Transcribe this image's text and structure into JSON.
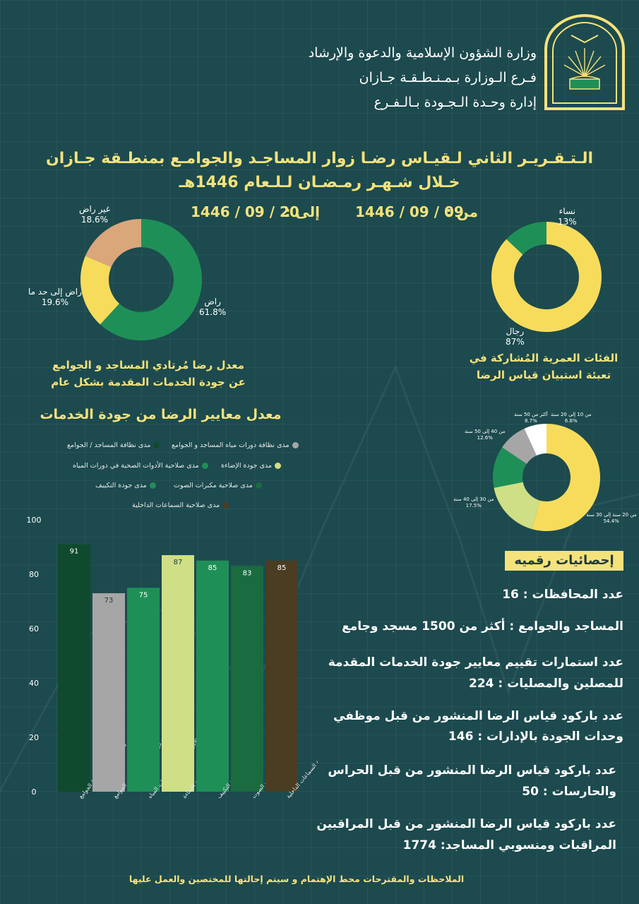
{
  "header": {
    "line1": "وزارة الشؤون الإسلامية والدعوة والإرشاد",
    "line2": "فـرع الـوزارة بـمـنـطـقـة جـازان",
    "line3": "إدارة وحـدة الـجـودة بـالـفـرع"
  },
  "title": {
    "line1": "الـتـقـريـر الثاني لـقيـاس رضـا زوار المساجـد والجوامـع بمنطـقة جـازان",
    "line2": "خـلال شـهـر رمـضـان لـلـعام 1446هـ",
    "from_label": "من :",
    "from_date": "1446 / 09 / 09",
    "to_label": "إلى :",
    "to_date": "1446 / 09 / 20"
  },
  "colors": {
    "background": "#1c4a4e",
    "accent_yellow": "#f5e27a",
    "green": "#1f8f58",
    "tan": "#d9a77a",
    "gray": "#a6a6a6",
    "light_green": "#cfdf85"
  },
  "satisfaction_caption": {
    "line1": "معدل رضا مُرتادي المساجد و الجوامع",
    "line2": "عن جودة الخدمات المقدمة بشكل عام"
  },
  "gender_caption": {
    "line1": "الفئات العمرية المُشاركة في",
    "line2": "تعبئة استبيان قياس الرضا"
  },
  "bar_chart_title": "معدل معايير الرضا من جودة الخدمات",
  "stats": {
    "badge": "إحصائيات رقميه",
    "s1": "عدد المحافظات : 16",
    "s2": "المساجد والجوامع : أكثر من 1500 مسجد وجامع",
    "s3a": "عدد استمارات تقييم معايير جودة الخدمات المقدمة",
    "s3b": "للمصلين والمصليات : 224",
    "s4a": "عدد باركود قياس الرضا المنشور من قبل موظفي",
    "s4b": "وحدات الجودة بالإدارات : 146",
    "s5a": "عدد باركود قياس الرضا المنشور من قبل الحراس",
    "s5b": "والحارسات : 50",
    "s6a": "عدد باركود قياس الرضا المنشور من قبل المراقبين",
    "s6b": "المراقبات ومنسوبي المساجد: 1774"
  },
  "footer": "الملاحظات والمقترحات محط الإهتمام و سيتم إحالتها للمختصين والعمل عليها",
  "chart_data": [
    {
      "type": "pie",
      "title": "",
      "labels": [
        "راض",
        "راض إلى حد ما",
        "غير راض"
      ],
      "values": [
        61.8,
        19.6,
        18.6
      ],
      "display": [
        "61.8%",
        "19.6%",
        "18.6%"
      ],
      "colors": [
        "#1f8f58",
        "#f7dc5c",
        "#d9a77a"
      ]
    },
    {
      "type": "pie",
      "title": "",
      "labels": [
        "رجال",
        "نساء"
      ],
      "values": [
        87,
        13
      ],
      "display": [
        "87%",
        "13%"
      ],
      "colors": [
        "#f7dc5c",
        "#1f8f58"
      ]
    },
    {
      "type": "pie",
      "title": "",
      "labels": [
        "من 20 سنة إلى 30 سنة",
        "من 30 إلى 40 سنة",
        "من 40 إلى 50 سنة",
        "أكثر من 50 سنة",
        "من 10 إلى 20 سنة"
      ],
      "values": [
        54.4,
        17.5,
        12.6,
        8.7,
        6.8
      ],
      "display": [
        "54.4%",
        "17.5%",
        "12.6%",
        "8.7%",
        "6.8%"
      ],
      "colors": [
        "#f7dc5c",
        "#cfdf85",
        "#1f8f58",
        "#a6a6a6",
        "#ffffff"
      ]
    },
    {
      "type": "bar",
      "title": "معدل معايير الرضا من جودة الخدمات",
      "categories": [
        "مدى نظافة المساجد / الجوامع",
        "مدى نظافة دورات مياه المساجد و الجوامع",
        "مدى صلاحية الأدوات الصحية في دورات المياه",
        "مدى جودة الإضاءة",
        "مدى جودة التكييف",
        "مدى صلاحية مكبرات الصوت",
        "مدى صلاحية السماعات الداخلية"
      ],
      "values": [
        91,
        73,
        75,
        87,
        85,
        83,
        85
      ],
      "colors": [
        "#0f4a2e",
        "#a6a6a6",
        "#1f8f58",
        "#cfdf85",
        "#1f8f58",
        "#1a6b40",
        "#4a3d22"
      ],
      "yticks": [
        0,
        20,
        40,
        60,
        80,
        100
      ],
      "ylim": [
        0,
        100
      ],
      "legend": [
        "مدى نظافة المساجد / الجوامع",
        "مدى نظافة دورات مياه المساجد و الجوامع",
        "مدى جودة الإضاءة",
        "مدى صلاحية الأدوات الصحية في دورات المياه",
        "مدى صلاحية مكبرات الصوت",
        "مدى جودة التكييف",
        "مدى صلاحية السماعات الداخلية"
      ],
      "legend_colors": [
        "#0f4a2e",
        "#a6a6a6",
        "#cfdf85",
        "#1f8f58",
        "#1a6b40",
        "#1f8f58",
        "#4a3d22"
      ]
    }
  ]
}
